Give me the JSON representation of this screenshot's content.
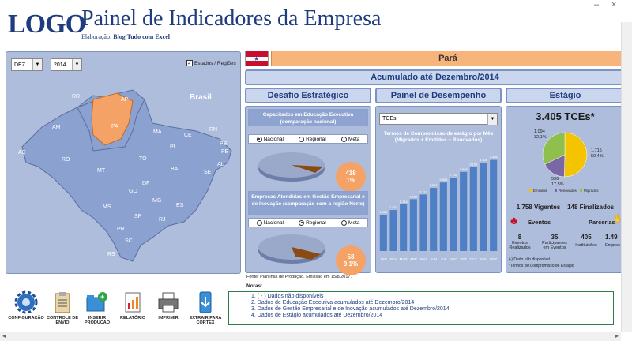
{
  "header": {
    "logo": "LOGO",
    "title": "Painel de Indicadores da Empresa",
    "subtitle_prefix": "Elaboração:",
    "subtitle_author": "Blog Tudo com Excel",
    "window_controls": [
      "–",
      "×"
    ]
  },
  "map": {
    "month": "DEZ",
    "year": "2014",
    "checkbox_label": "Estados / Regiões",
    "country_label": "Brasil",
    "states": [
      "RR",
      "AP",
      "AM",
      "PA",
      "MA",
      "CE",
      "RN",
      "PB",
      "PE",
      "AL",
      "SE",
      "PI",
      "TO",
      "BA",
      "AC",
      "RO",
      "MT",
      "GO",
      "DF",
      "MG",
      "ES",
      "MS",
      "SP",
      "RJ",
      "PR",
      "SC",
      "RS"
    ],
    "selected_state": "PA",
    "selected_color": "#f5a266",
    "map_color": "#8ba1d0"
  },
  "state_banner": "Pará",
  "period_banner": "Acumulado até Dezembro/2014",
  "sections": {
    "desafio": "Desafio Estratégico",
    "painel": "Painel de Desempenho",
    "estagio": "Estágio"
  },
  "desafio": {
    "card1_title": "Capacitados em Educação Executiva (comparação nacional)",
    "card1_radios": [
      "Nacional",
      "Regional",
      "Meta"
    ],
    "card1_selected": 0,
    "card1_value": "418",
    "card1_pct": "1%",
    "card2_title": "Empresas Atendidas em Gestão Empresarial e de Inovação (comparação com a região Norte)",
    "card2_radios": [
      "Nacional",
      "Regional",
      "Meta"
    ],
    "card2_selected": 1,
    "card2_value": "58",
    "card2_pct": "9,1%"
  },
  "painel": {
    "dropdown": "TCEs",
    "chart_title": "Termos de Compromisso de estágio por Mês (Migrados + Emitidos + Renovados)"
  },
  "chart_data": [
    {
      "type": "bar",
      "title": "Termos de Compromisso de estágio por Mês (Migrados + Emitidos + Renovados)",
      "categories": [
        "JAN",
        "FEV",
        "MAR",
        "ABR",
        "MAI",
        "JUN",
        "JUL",
        "AGO",
        "SET",
        "OUT",
        "NOV",
        "DEZ"
      ],
      "values": [
        1356,
        1532,
        1744,
        1937,
        2113,
        2357,
        2560,
        2744,
        2956,
        3150,
        3305,
        3405
      ],
      "labels": [
        "1.356",
        "1.532",
        "1.744",
        "1.937",
        "2.113",
        "2.357",
        "2.560",
        "2.744",
        "2.956",
        "3.150",
        "3.305",
        "3.405"
      ],
      "ylim": [
        0,
        3600
      ],
      "bar_color": "#4f7fc4"
    },
    {
      "type": "pie",
      "title": "3.405 TCEs*",
      "series": [
        {
          "name": "Emitidos",
          "value": 1715,
          "label": "1.715",
          "pct": "50,4%",
          "color": "#f5c400"
        },
        {
          "name": "Renovados",
          "value": 596,
          "label": "596",
          "pct": "17,5%",
          "color": "#7a67a6"
        },
        {
          "name": "Migrados",
          "value": 1094,
          "label": "1.094",
          "pct": "32,1%",
          "color": "#8fbf4d"
        }
      ]
    }
  ],
  "estagio": {
    "total": "3.405 TCEs*",
    "vigentes": "1.758 Vigentes",
    "finalizados": "148 Finalizados",
    "eventos_label": "Eventos",
    "parcerias_label": "Parcerias",
    "eventos_realizados": "8",
    "eventos_realizados_label": "Eventos Realizados",
    "participantes": "35",
    "participantes_label": "Participantes em Eventos",
    "instituicoes": "405",
    "instituicoes_label": "Instituições",
    "empresas": "1.49",
    "empresas_label": "Empres",
    "note1": "(-) Dado não disponível",
    "note2": "*Termos de Compromisso de Estágio"
  },
  "fonte": "Fonte: Planilhas de Produção. Emissão em 15/8/2017.",
  "notes": {
    "label": "Notas:",
    "items": [
      "1. ( - ) Dados não disponíveis",
      "2. Dados de Educação Executiva acumulados até Dezembro/2014",
      "3. Dados de Gestão Empresarial e de Inovação acumulados até Dezembro/2014",
      "4. Dados de Estágio acumulados até Dezembro/2014"
    ]
  },
  "toolbar": [
    {
      "label": "CONFIGURAÇÃO",
      "icon": "gear-icon"
    },
    {
      "label": "CONTROLE DE ENVIO",
      "icon": "clipboard-icon"
    },
    {
      "label": "INSERIR PRODUÇÃO",
      "icon": "folder-add-icon"
    },
    {
      "label": "RELATÓRIO",
      "icon": "report-icon"
    },
    {
      "label": "IMPRIMIR",
      "icon": "printer-icon"
    },
    {
      "label": "EXTRAIR PARA CÓRTEX",
      "icon": "extract-icon"
    }
  ]
}
